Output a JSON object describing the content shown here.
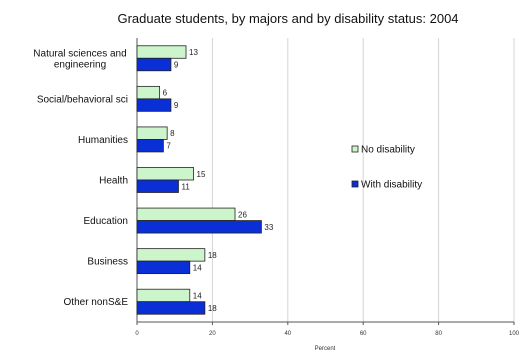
{
  "chart_data": {
    "type": "bar",
    "orientation": "horizontal",
    "title": "Graduate students, by majors and by disability status: 2004",
    "xlabel": "Percent",
    "ylabel": "",
    "xlim": [
      0,
      100
    ],
    "xticks": [
      "0",
      "20",
      "40",
      "60",
      "80",
      "100"
    ],
    "grid": true,
    "legend_position": "right",
    "categories": [
      [
        "Natural sciences and",
        "engineering"
      ],
      [
        "Social/behavioral sci"
      ],
      [
        "Humanities"
      ],
      [
        "Health"
      ],
      [
        "Education"
      ],
      [
        "Business"
      ],
      [
        "Other nonS&E"
      ]
    ],
    "series": [
      {
        "name": "No disability",
        "color": "#ccf5cc",
        "values": [
          13,
          6,
          8,
          15,
          26,
          18,
          14
        ]
      },
      {
        "name": "With disability",
        "color": "#0b2fd6",
        "values": [
          9,
          9,
          7,
          11,
          33,
          14,
          18
        ]
      }
    ]
  }
}
